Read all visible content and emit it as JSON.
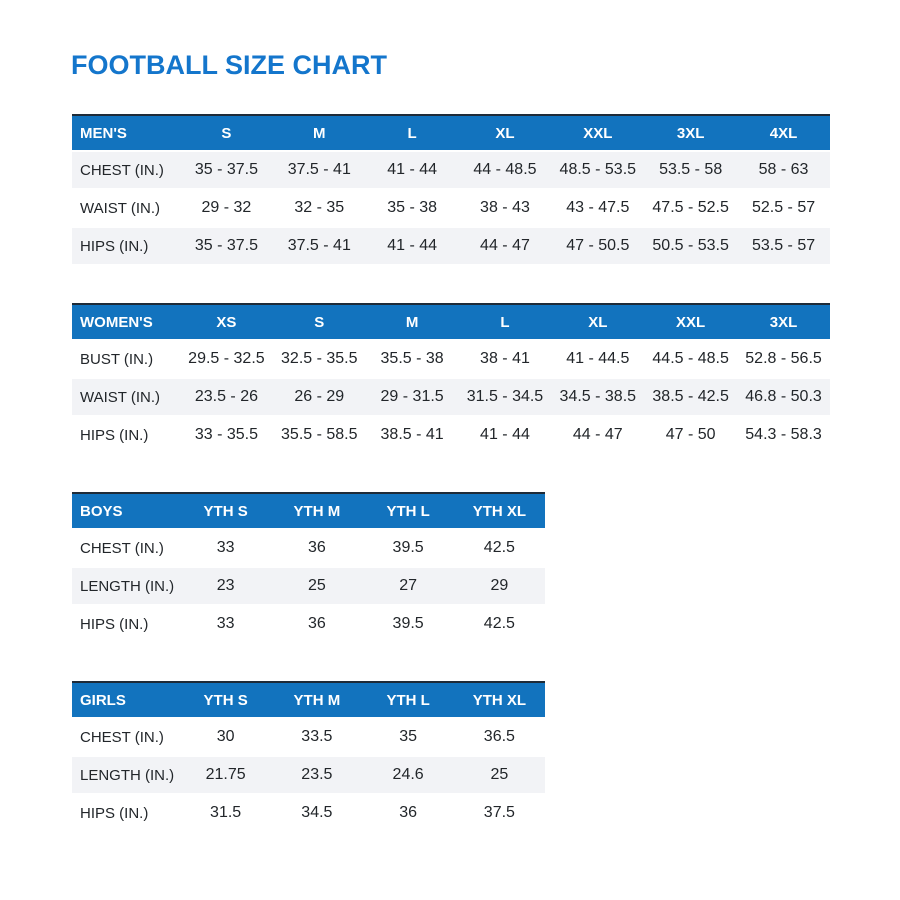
{
  "page_title": "FOOTBALL SIZE CHART",
  "colors": {
    "accent_blue": "#1273BE",
    "title_blue": "#1476CC",
    "stripe_gray": "#F2F3F6",
    "header_text": "#FFFFFF",
    "body_text": "#22262A",
    "header_top_border": "#1E2B38"
  },
  "chart_data": [
    {
      "type": "table",
      "id": "mens",
      "columns": [
        "MEN'S",
        "S",
        "M",
        "L",
        "XL",
        "XXL",
        "3XL",
        "4XL"
      ],
      "rows": [
        [
          "CHEST (IN.)",
          "35 - 37.5",
          "37.5 - 41",
          "41 - 44",
          "44 - 48.5",
          "48.5 - 53.5",
          "53.5 - 58",
          "58 - 63"
        ],
        [
          "WAIST (IN.)",
          "29 - 32",
          "32 - 35",
          "35 - 38",
          "38 - 43",
          "43 - 47.5",
          "47.5 - 52.5",
          "52.5 - 57"
        ],
        [
          "HIPS (IN.)",
          "35 - 37.5",
          "37.5 - 41",
          "41 - 44",
          "44 - 47",
          "47 - 50.5",
          "50.5 - 53.5",
          "53.5 - 57"
        ]
      ]
    },
    {
      "type": "table",
      "id": "womens",
      "columns": [
        "WOMEN'S",
        "XS",
        "S",
        "M",
        "L",
        "XL",
        "XXL",
        "3XL"
      ],
      "rows": [
        [
          "BUST (IN.)",
          "29.5 - 32.5",
          "32.5 - 35.5",
          "35.5 - 38",
          "38 - 41",
          "41 - 44.5",
          "44.5 - 48.5",
          "52.8 - 56.5"
        ],
        [
          "WAIST (IN.)",
          "23.5 - 26",
          "26 - 29",
          "29 - 31.5",
          "31.5 - 34.5",
          "34.5 - 38.5",
          "38.5 - 42.5",
          "46.8 - 50.3"
        ],
        [
          "HIPS (IN.)",
          "33 - 35.5",
          "35.5 - 58.5",
          "38.5 - 41",
          "41 - 44",
          "44 - 47",
          "47 - 50",
          "54.3 - 58.3"
        ]
      ]
    },
    {
      "type": "table",
      "id": "boys",
      "columns": [
        "BOYS",
        "YTH S",
        "YTH M",
        "YTH L",
        "YTH XL"
      ],
      "rows": [
        [
          "CHEST (IN.)",
          "33",
          "36",
          "39.5",
          "42.5"
        ],
        [
          "LENGTH (IN.)",
          "23",
          "25",
          "27",
          "29"
        ],
        [
          "HIPS (IN.)",
          "33",
          "36",
          "39.5",
          "42.5"
        ]
      ]
    },
    {
      "type": "table",
      "id": "girls",
      "columns": [
        "GIRLS",
        "YTH S",
        "YTH M",
        "YTH L",
        "YTH XL"
      ],
      "rows": [
        [
          "CHEST (IN.)",
          "30",
          "33.5",
          "35",
          "36.5"
        ],
        [
          "LENGTH (IN.)",
          "21.75",
          "23.5",
          "24.6",
          "25"
        ],
        [
          "HIPS (IN.)",
          "31.5",
          "34.5",
          "36",
          "37.5"
        ]
      ]
    }
  ]
}
